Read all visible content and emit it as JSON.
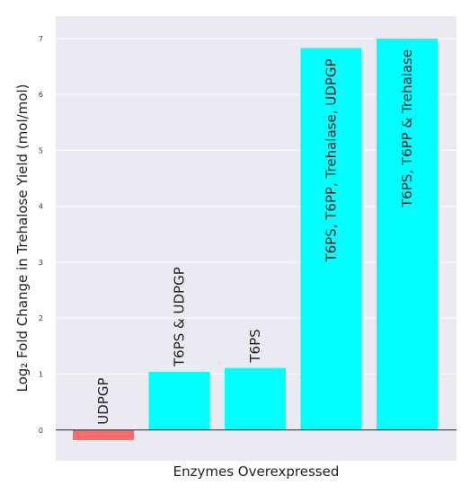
{
  "chart_data": {
    "type": "bar",
    "categories": [
      "UDPGP",
      "T6PS & UDPGP",
      "T6PS",
      "T6PS, T6PP, Trehalase, UDPGP",
      "T6PS, T6PP & Trehalase"
    ],
    "values": [
      -0.18,
      1.04,
      1.11,
      6.83,
      7.0
    ],
    "bar_colors": [
      "#ff6b6b",
      "#00ffff",
      "#00ffff",
      "#00ffff",
      "#00ffff"
    ],
    "title": "",
    "xlabel": "Enzymes Overexpressed",
    "ylabel": "Log₂ Fold Change in Trehalose Yield (mol/mol)",
    "ylim": [
      -0.55,
      7.4
    ],
    "yticks": [
      0,
      1,
      2,
      3,
      4,
      5,
      6,
      7
    ],
    "grid": true,
    "background_color": "#eaeaf2"
  }
}
